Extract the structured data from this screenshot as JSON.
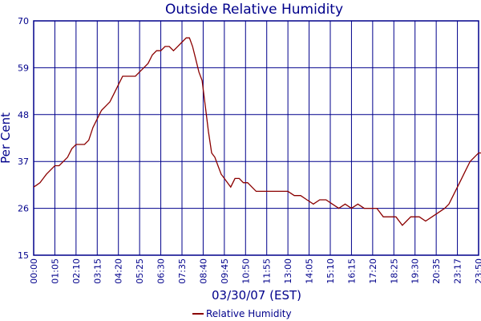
{
  "chart_data": {
    "type": "line",
    "title": "Outside Relative Humidity",
    "xlabel": "03/30/07 (EST)",
    "ylabel": "Per Cent",
    "ylim": [
      15,
      70
    ],
    "yticks": [
      "15",
      "26",
      "37",
      "48",
      "59",
      "70"
    ],
    "xticks": [
      "00:00",
      "01:05",
      "02:10",
      "03:15",
      "04:20",
      "05:25",
      "06:30",
      "07:35",
      "08:40",
      "09:45",
      "10:50",
      "11:55",
      "13:00",
      "14:05",
      "15:10",
      "16:15",
      "17:20",
      "18:25",
      "19:30",
      "20:35",
      "23:17",
      "23:50"
    ],
    "grid": true,
    "legend_position": "bottom-center",
    "colors": {
      "axis": "#00008b",
      "series": "#8b0000"
    },
    "series": [
      {
        "name": "Relative Humidity",
        "color": "#8b0000",
        "x": [
          0,
          0.15,
          0.3,
          0.45,
          0.6,
          0.8,
          1.0,
          1.2,
          1.4,
          1.6,
          1.8,
          2.0,
          2.2,
          2.4,
          2.6,
          2.8,
          3.0,
          3.2,
          3.4,
          3.6,
          3.8,
          4.0,
          4.2,
          4.4,
          4.6,
          4.8,
          5.0,
          5.2,
          5.4,
          5.6,
          5.8,
          6.0,
          6.2,
          6.4,
          6.6,
          6.8,
          7.0,
          7.2,
          7.35,
          7.5,
          7.65,
          7.8,
          7.95,
          8.1,
          8.25,
          8.4,
          8.55,
          8.7,
          8.85,
          9.0,
          9.15,
          9.3,
          9.5,
          9.7,
          9.9,
          10.1,
          10.3,
          10.5,
          10.8,
          11.1,
          11.4,
          11.7,
          12.0,
          12.3,
          12.6,
          12.9,
          13.2,
          13.5,
          13.8,
          14.1,
          14.4,
          14.7,
          15.0,
          15.3,
          15.6,
          15.9,
          16.2,
          16.5,
          16.8,
          17.1,
          17.4,
          17.6,
          17.8,
          18.0,
          18.2,
          18.5,
          18.8,
          19.1,
          19.4,
          19.6,
          19.8,
          20.0,
          20.2,
          20.4,
          20.6,
          20.8,
          21.0,
          21.2,
          21.4,
          21.6,
          21.8,
          22.0
        ],
        "values": [
          31,
          31.5,
          32,
          33,
          34,
          35,
          36,
          36,
          37,
          38,
          40,
          41,
          41,
          41,
          42,
          45,
          47,
          49,
          50,
          51,
          53,
          55,
          57,
          57,
          57,
          57,
          58,
          59,
          60,
          62,
          63,
          63,
          64,
          64,
          63,
          64,
          65,
          66,
          66,
          64,
          61,
          58,
          56,
          50,
          44,
          39,
          38,
          36,
          34,
          33,
          32,
          31,
          33,
          33,
          32,
          32,
          31,
          30,
          30,
          30,
          30,
          30,
          30,
          29,
          29,
          28,
          27,
          28,
          28,
          27,
          26,
          27,
          26,
          27,
          26,
          26,
          26,
          24,
          24,
          24,
          22,
          23,
          24,
          24,
          24,
          23,
          24,
          25,
          26,
          27,
          29,
          31,
          33,
          35,
          37,
          38,
          39,
          39,
          43,
          43,
          43,
          43
        ]
      }
    ]
  }
}
